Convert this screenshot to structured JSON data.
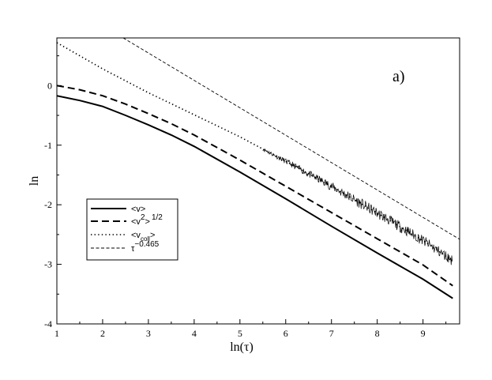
{
  "chart_data": {
    "type": "line",
    "panel_label": "a)",
    "xlabel": "ln(τ)",
    "ylabel": "ln",
    "xlim": [
      1,
      9.8
    ],
    "ylim": [
      -4,
      0.8
    ],
    "xticks": [
      1,
      2,
      3,
      4,
      5,
      6,
      7,
      8,
      9
    ],
    "yticks": [
      -4,
      -3,
      -2,
      -1,
      0
    ],
    "grid": false,
    "legend_position": "center-left",
    "series": [
      {
        "name": "<v>",
        "legend": {
          "main": "<v>",
          "sup": "",
          "sub": "",
          "tail": ""
        },
        "style": "solid",
        "x": [
          1.0,
          1.5,
          2.0,
          2.5,
          3.0,
          3.5,
          4.0,
          5.0,
          6.0,
          7.0,
          8.0,
          9.0,
          9.65
        ],
        "y": [
          -0.17,
          -0.25,
          -0.35,
          -0.5,
          -0.66,
          -0.83,
          -1.02,
          -1.45,
          -1.9,
          -2.36,
          -2.81,
          -3.25,
          -3.57
        ]
      },
      {
        "name": "<v²>^1/2",
        "legend": {
          "main": "<v",
          "sup": "2",
          "sub": "",
          "tail": ">",
          "tail_sup": "1/2"
        },
        "style": "dashed",
        "x": [
          1.0,
          1.5,
          2.0,
          2.5,
          3.0,
          3.5,
          4.0,
          5.0,
          6.0,
          7.0,
          8.0,
          9.0,
          9.65
        ],
        "y": [
          0.0,
          -0.07,
          -0.17,
          -0.31,
          -0.47,
          -0.64,
          -0.83,
          -1.25,
          -1.69,
          -2.13,
          -2.57,
          -3.01,
          -3.36
        ]
      },
      {
        "name": "<v_coll>",
        "legend": {
          "main": "<v",
          "sup": "",
          "sub": "coll",
          "tail": ">"
        },
        "style": "dotted",
        "x": [
          1.0,
          2.0,
          3.0,
          4.0,
          5.0,
          6.0,
          7.0,
          8.0,
          9.0,
          9.65
        ],
        "y": [
          0.72,
          0.28,
          -0.12,
          -0.49,
          -0.86,
          -1.27,
          -1.69,
          -2.14,
          -2.6,
          -2.94
        ],
        "noisy_from_x": 5.5
      },
      {
        "name": "τ^-0.465",
        "legend": {
          "main": "τ",
          "sup": "−0.465",
          "sub": "",
          "tail": ""
        },
        "style": "thin-dashed",
        "x": [
          2.45,
          9.8
        ],
        "y": [
          0.8,
          -2.58
        ]
      }
    ]
  }
}
